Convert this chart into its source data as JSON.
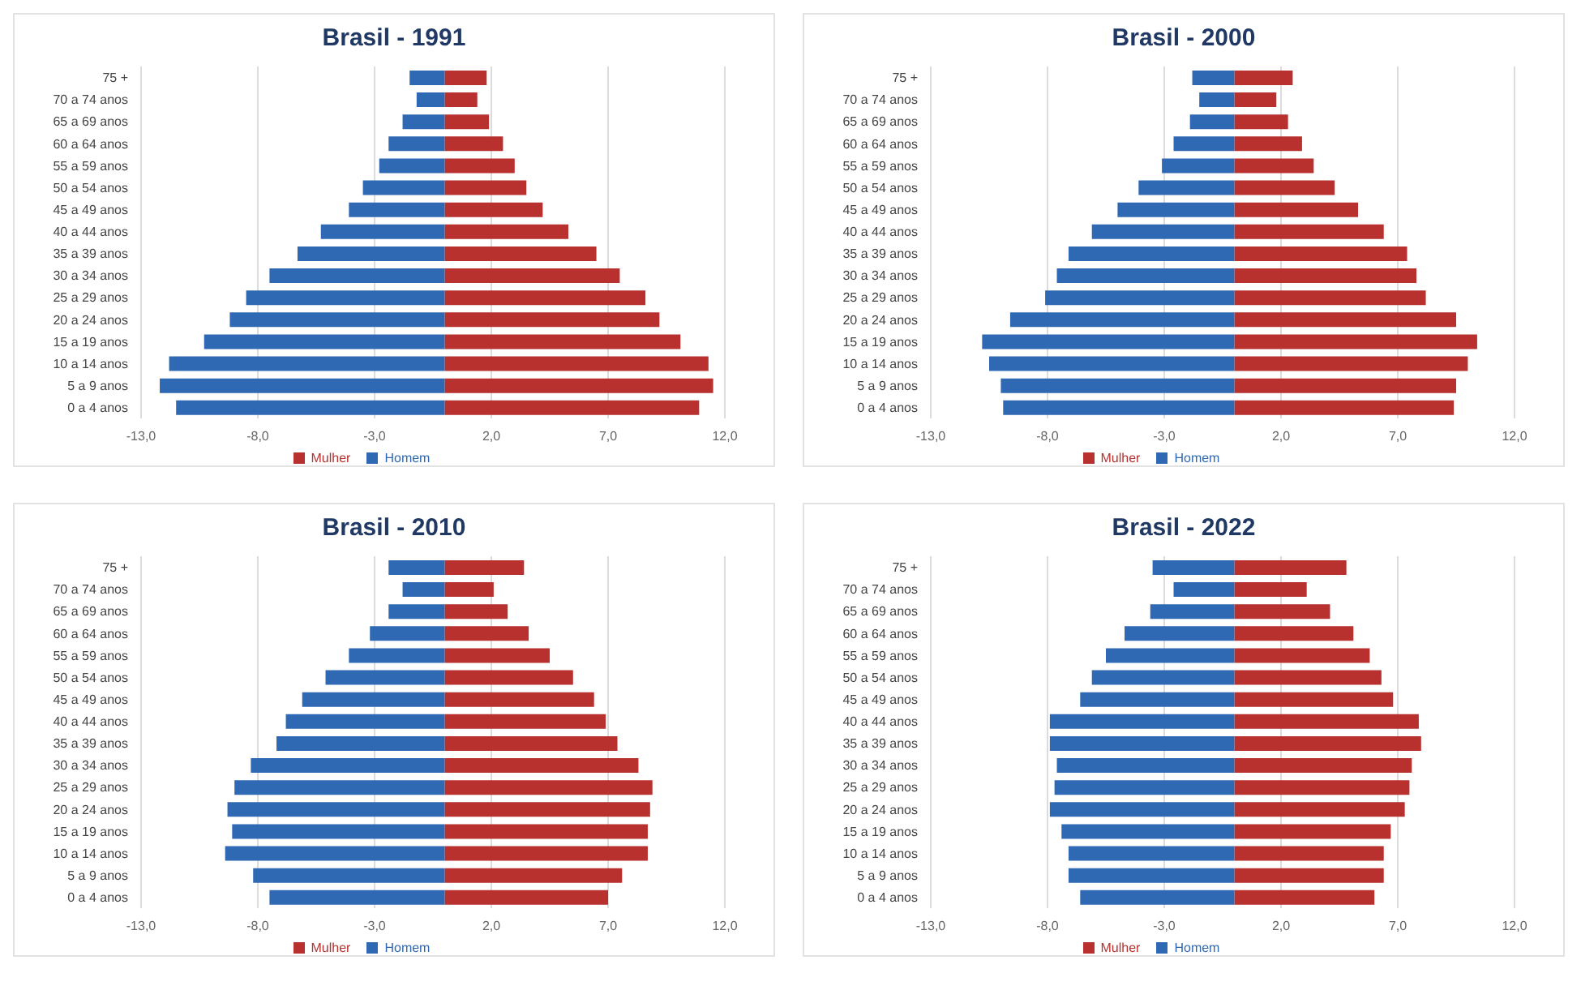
{
  "chart_data": [
    {
      "type": "bar",
      "orientation": "horizontal",
      "stacked": true,
      "title": "Brasil - 1991",
      "categories": [
        "75 +",
        "70 a 74 anos",
        "65 a 69 anos",
        "60 a 64 anos",
        "55 a 59 anos",
        "50 a 54 anos",
        "45 a 49 anos",
        "40 a 44 anos",
        "35 a 39 anos",
        "30 a 34 anos",
        "25 a 29 anos",
        "20 a 24 anos",
        "15 a 19 anos",
        "10 a 14 anos",
        "5 a 9 anos",
        "0 a 4 anos"
      ],
      "series": [
        {
          "name": "Mulher",
          "color": "#b8312f",
          "values": [
            1.8,
            1.4,
            1.9,
            2.5,
            3.0,
            3.5,
            4.2,
            5.3,
            6.5,
            7.5,
            8.6,
            9.2,
            10.1,
            11.3,
            11.5,
            10.9
          ]
        },
        {
          "name": "Homem",
          "color": "#2f69b3",
          "values": [
            -1.5,
            -1.2,
            -1.8,
            -2.4,
            -2.8,
            -3.5,
            -4.1,
            -5.3,
            -6.3,
            -7.5,
            -8.5,
            -9.2,
            -10.3,
            -11.8,
            -12.2,
            -11.5
          ]
        }
      ],
      "xlim": [
        -13,
        12
      ],
      "xticks": [
        {
          "value": -13,
          "label": "-13,0"
        },
        {
          "value": -8,
          "label": "-8,0"
        },
        {
          "value": -3,
          "label": "-3,0"
        },
        {
          "value": 2,
          "label": "2,0"
        },
        {
          "value": 7,
          "label": "7,0"
        },
        {
          "value": 12,
          "label": "12,0"
        }
      ],
      "grid": "x",
      "legend": "bottom"
    },
    {
      "type": "bar",
      "orientation": "horizontal",
      "stacked": true,
      "title": "Brasil - 2000",
      "categories": [
        "75 +",
        "70 a 74 anos",
        "65 a 69 anos",
        "60 a 64 anos",
        "55 a 59 anos",
        "50 a 54 anos",
        "45 a 49 anos",
        "40 a 44 anos",
        "35 a 39 anos",
        "30 a 34 anos",
        "25 a 29 anos",
        "20 a 24 anos",
        "15 a 19 anos",
        "10 a 14 anos",
        "5 a 9 anos",
        "0 a 4 anos"
      ],
      "series": [
        {
          "name": "Mulher",
          "color": "#b8312f",
          "values": [
            2.5,
            1.8,
            2.3,
            2.9,
            3.4,
            4.3,
            5.3,
            6.4,
            7.4,
            7.8,
            8.2,
            9.5,
            10.4,
            10.0,
            9.5,
            9.4
          ]
        },
        {
          "name": "Homem",
          "color": "#2f69b3",
          "values": [
            -1.8,
            -1.5,
            -1.9,
            -2.6,
            -3.1,
            -4.1,
            -5.0,
            -6.1,
            -7.1,
            -7.6,
            -8.1,
            -9.6,
            -10.8,
            -10.5,
            -10.0,
            -9.9
          ]
        }
      ],
      "xlim": [
        -13,
        12
      ],
      "xticks": [
        {
          "value": -13,
          "label": "-13,0"
        },
        {
          "value": -8,
          "label": "-8,0"
        },
        {
          "value": -3,
          "label": "-3,0"
        },
        {
          "value": 2,
          "label": "2,0"
        },
        {
          "value": 7,
          "label": "7,0"
        },
        {
          "value": 12,
          "label": "12,0"
        }
      ],
      "grid": "x",
      "legend": "bottom"
    },
    {
      "type": "bar",
      "orientation": "horizontal",
      "stacked": true,
      "title": "Brasil - 2010",
      "categories": [
        "75 +",
        "70 a 74 anos",
        "65 a 69 anos",
        "60 a 64 anos",
        "55 a 59 anos",
        "50 a 54 anos",
        "45 a 49 anos",
        "40 a 44 anos",
        "35 a 39 anos",
        "30 a 34 anos",
        "25 a 29 anos",
        "20 a 24 anos",
        "15 a 19 anos",
        "10 a 14 anos",
        "5 a 9 anos",
        "0 a 4 anos"
      ],
      "series": [
        {
          "name": "Mulher",
          "color": "#b8312f",
          "values": [
            3.4,
            2.1,
            2.7,
            3.6,
            4.5,
            5.5,
            6.4,
            6.9,
            7.4,
            8.3,
            8.9,
            8.8,
            8.7,
            8.7,
            7.6,
            7.0
          ]
        },
        {
          "name": "Homem",
          "color": "#2f69b3",
          "values": [
            -2.4,
            -1.8,
            -2.4,
            -3.2,
            -4.1,
            -5.1,
            -6.1,
            -6.8,
            -7.2,
            -8.3,
            -9.0,
            -9.3,
            -9.1,
            -9.4,
            -8.2,
            -7.5
          ]
        }
      ],
      "xlim": [
        -13,
        12
      ],
      "xticks": [
        {
          "value": -13,
          "label": "-13,0"
        },
        {
          "value": -8,
          "label": "-8,0"
        },
        {
          "value": -3,
          "label": "-3,0"
        },
        {
          "value": 2,
          "label": "2,0"
        },
        {
          "value": 7,
          "label": "7,0"
        },
        {
          "value": 12,
          "label": "12,0"
        }
      ],
      "grid": "x",
      "legend": "bottom"
    },
    {
      "type": "bar",
      "orientation": "horizontal",
      "stacked": true,
      "title": "Brasil - 2022",
      "categories": [
        "75 +",
        "70 a 74 anos",
        "65 a 69 anos",
        "60 a 64 anos",
        "55 a 59 anos",
        "50 a 54 anos",
        "45 a 49 anos",
        "40 a 44 anos",
        "35 a 39 anos",
        "30 a 34 anos",
        "25 a 29 anos",
        "20 a 24 anos",
        "15 a 19 anos",
        "10 a 14 anos",
        "5 a 9 anos",
        "0 a 4 anos"
      ],
      "series": [
        {
          "name": "Mulher",
          "color": "#b8312f",
          "values": [
            4.8,
            3.1,
            4.1,
            5.1,
            5.8,
            6.3,
            6.8,
            7.9,
            8.0,
            7.6,
            7.5,
            7.3,
            6.7,
            6.4,
            6.4,
            6.0
          ]
        },
        {
          "name": "Homem",
          "color": "#2f69b3",
          "values": [
            -3.5,
            -2.6,
            -3.6,
            -4.7,
            -5.5,
            -6.1,
            -6.6,
            -7.9,
            -7.9,
            -7.6,
            -7.7,
            -7.9,
            -7.4,
            -7.1,
            -7.1,
            -6.6
          ]
        }
      ],
      "xlim": [
        -13,
        12
      ],
      "xticks": [
        {
          "value": -13,
          "label": "-13,0"
        },
        {
          "value": -8,
          "label": "-8,0"
        },
        {
          "value": -3,
          "label": "-3,0"
        },
        {
          "value": 2,
          "label": "2,0"
        },
        {
          "value": 7,
          "label": "7,0"
        },
        {
          "value": 12,
          "label": "12,0"
        }
      ],
      "grid": "x",
      "legend": "bottom"
    }
  ]
}
